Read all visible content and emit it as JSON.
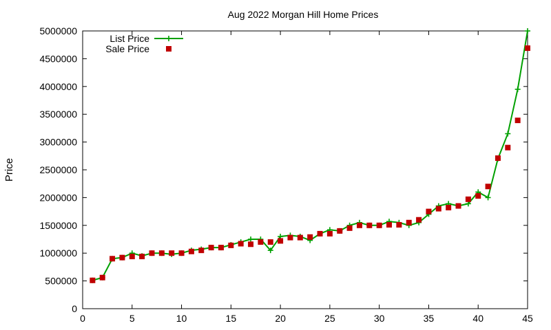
{
  "chart_data": {
    "type": "line",
    "title": "Aug 2022 Morgan Hill Home Prices",
    "xlabel": "",
    "ylabel": "Price",
    "xlim": [
      0,
      45
    ],
    "ylim": [
      0,
      5000000
    ],
    "x_ticks": [
      0,
      5,
      10,
      15,
      20,
      25,
      30,
      35,
      40,
      45
    ],
    "y_ticks": [
      0,
      500000,
      1000000,
      1500000,
      2000000,
      2500000,
      3000000,
      3500000,
      4000000,
      4500000,
      5000000
    ],
    "grid": false,
    "legend_position": "top-left",
    "x": [
      1,
      2,
      3,
      4,
      5,
      6,
      7,
      8,
      9,
      10,
      11,
      12,
      13,
      14,
      15,
      16,
      17,
      18,
      19,
      20,
      21,
      22,
      23,
      24,
      25,
      26,
      27,
      28,
      29,
      30,
      31,
      32,
      33,
      34,
      35,
      36,
      37,
      38,
      39,
      40,
      41,
      42,
      43,
      44,
      45
    ],
    "series": [
      {
        "name": "List Price",
        "style": "linespoints",
        "marker": "plus",
        "color": "#00a000",
        "values": [
          510000,
          560000,
          900000,
          920000,
          1000000,
          950000,
          1000000,
          1000000,
          980000,
          1000000,
          1050000,
          1070000,
          1100000,
          1100000,
          1150000,
          1200000,
          1250000,
          1250000,
          1050000,
          1300000,
          1320000,
          1300000,
          1230000,
          1350000,
          1420000,
          1400000,
          1500000,
          1550000,
          1500000,
          1500000,
          1570000,
          1550000,
          1500000,
          1550000,
          1700000,
          1850000,
          1890000,
          1850000,
          1890000,
          2100000,
          2000000,
          2700000,
          3150000,
          3950000,
          5000000
        ]
      },
      {
        "name": "Sale Price",
        "style": "points",
        "marker": "square",
        "color": "#c00000",
        "values": [
          510000,
          560000,
          900000,
          920000,
          940000,
          940000,
          1000000,
          1000000,
          1000000,
          1000000,
          1030000,
          1050000,
          1100000,
          1100000,
          1140000,
          1170000,
          1160000,
          1200000,
          1200000,
          1220000,
          1280000,
          1280000,
          1290000,
          1350000,
          1350000,
          1400000,
          1450000,
          1500000,
          1500000,
          1500000,
          1510000,
          1510000,
          1550000,
          1600000,
          1750000,
          1800000,
          1820000,
          1850000,
          1970000,
          2030000,
          2200000,
          2710000,
          2900000,
          3390000,
          4690000
        ]
      }
    ]
  }
}
